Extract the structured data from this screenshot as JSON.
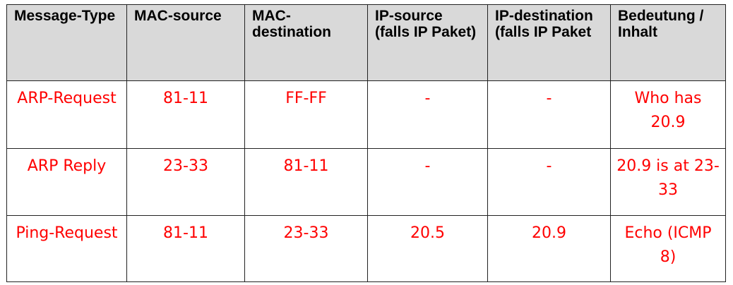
{
  "table": {
    "headers": [
      "Message-Type",
      "MAC-source",
      "MAC-destination",
      "IP-source (falls IP Paket)",
      "IP-destination (falls IP Paket",
      "Bedeutung / Inhalt"
    ],
    "rows": [
      [
        "ARP-Request",
        "81-11",
        "FF-FF",
        "-",
        "-",
        "Who has 20.9"
      ],
      [
        "ARP Reply",
        "23-33",
        "81-11",
        "-",
        "-",
        "20.9 is at 23-33"
      ],
      [
        "Ping-Request",
        "81-11",
        "23-33",
        "20.5",
        "20.9",
        "Echo (ICMP 8)"
      ]
    ]
  },
  "colors": {
    "header_background": "#d9d9d9",
    "cell_text": "#ff0000",
    "border": "#222222"
  }
}
